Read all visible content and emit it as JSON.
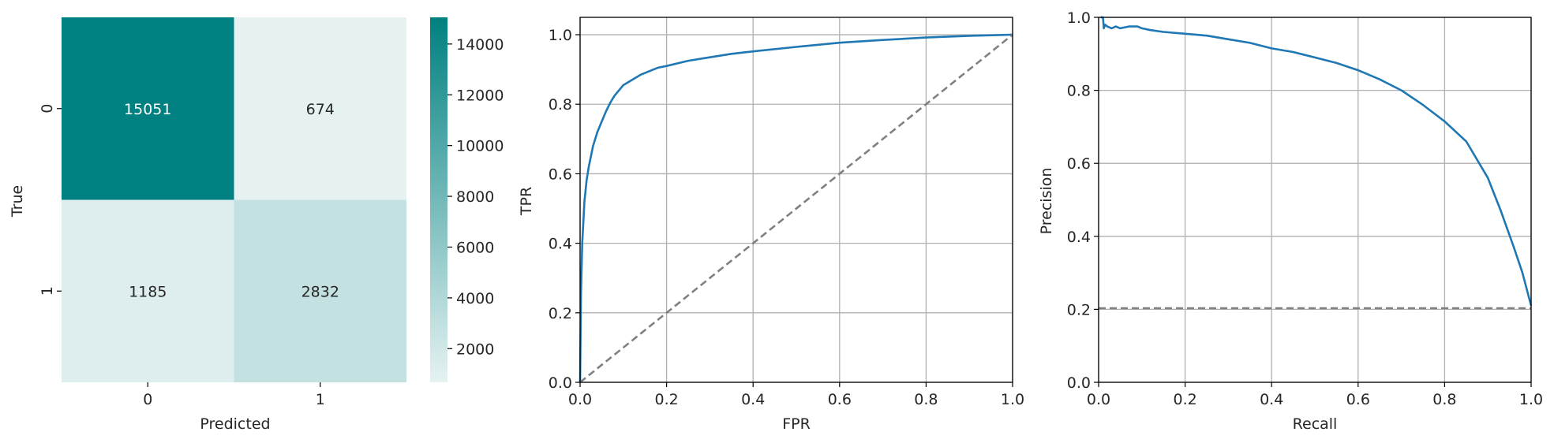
{
  "colors": {
    "heat_high": "#008080",
    "heat_low": "#e6f2f2",
    "curve": "#1f77b4",
    "baseline": "#808080",
    "grid": "#b0b0b0",
    "axis": "#000000",
    "text_dark": "#262626",
    "text_light": "#ffffff"
  },
  "chart_data": [
    {
      "type": "heatmap",
      "title": "",
      "xlabel": "Predicted",
      "ylabel": "True",
      "x_categories": [
        "0",
        "1"
      ],
      "y_categories": [
        "0",
        "1"
      ],
      "values": [
        [
          15051,
          674
        ],
        [
          1185,
          2832
        ]
      ],
      "colorbar": {
        "min": 674,
        "max": 15051,
        "ticks": [
          2000,
          4000,
          6000,
          8000,
          10000,
          12000,
          14000
        ]
      }
    },
    {
      "type": "line",
      "title": "",
      "xlabel": "FPR",
      "ylabel": "TPR",
      "xlim": [
        0,
        1
      ],
      "ylim": [
        0,
        1.05
      ],
      "xticks": [
        "0.0",
        "0.2",
        "0.4",
        "0.6",
        "0.8",
        "1.0"
      ],
      "yticks": [
        "0.0",
        "0.2",
        "0.4",
        "0.6",
        "0.8",
        "1.0"
      ],
      "grid": true,
      "series": [
        {
          "style": "solid",
          "x": [
            0.0,
            0.002,
            0.005,
            0.01,
            0.015,
            0.02,
            0.03,
            0.04,
            0.05,
            0.06,
            0.07,
            0.08,
            0.09,
            0.1,
            0.12,
            0.14,
            0.16,
            0.18,
            0.2,
            0.25,
            0.3,
            0.35,
            0.4,
            0.5,
            0.6,
            0.7,
            0.8,
            0.9,
            1.0
          ],
          "y": [
            0.0,
            0.25,
            0.4,
            0.52,
            0.58,
            0.62,
            0.68,
            0.72,
            0.75,
            0.78,
            0.805,
            0.825,
            0.84,
            0.855,
            0.87,
            0.885,
            0.895,
            0.905,
            0.91,
            0.925,
            0.935,
            0.945,
            0.952,
            0.965,
            0.977,
            0.985,
            0.992,
            0.997,
            1.0
          ]
        },
        {
          "style": "dashed",
          "x": [
            0,
            1
          ],
          "y": [
            0,
            1
          ]
        }
      ]
    },
    {
      "type": "line",
      "title": "",
      "xlabel": "Recall",
      "ylabel": "Precision",
      "xlim": [
        0,
        1
      ],
      "ylim": [
        0,
        1
      ],
      "xticks": [
        "0.0",
        "0.2",
        "0.4",
        "0.6",
        "0.8",
        "1.0"
      ],
      "yticks": [
        "0.0",
        "0.2",
        "0.4",
        "0.6",
        "0.8",
        "1.0"
      ],
      "grid": true,
      "series": [
        {
          "style": "solid",
          "x": [
            0.005,
            0.01,
            0.012,
            0.015,
            0.02,
            0.03,
            0.04,
            0.05,
            0.07,
            0.09,
            0.1,
            0.12,
            0.15,
            0.2,
            0.25,
            0.3,
            0.35,
            0.4,
            0.45,
            0.5,
            0.55,
            0.6,
            0.65,
            0.7,
            0.75,
            0.8,
            0.85,
            0.9,
            0.93,
            0.96,
            0.98,
            1.0
          ],
          "y": [
            1.0,
            1.0,
            0.97,
            0.98,
            0.975,
            0.97,
            0.975,
            0.97,
            0.975,
            0.975,
            0.97,
            0.965,
            0.96,
            0.955,
            0.95,
            0.94,
            0.93,
            0.915,
            0.905,
            0.89,
            0.875,
            0.855,
            0.83,
            0.8,
            0.76,
            0.715,
            0.66,
            0.56,
            0.47,
            0.37,
            0.3,
            0.21
          ]
        },
        {
          "style": "dashed",
          "x": [
            0,
            1
          ],
          "y": [
            0.203,
            0.203
          ]
        }
      ]
    }
  ]
}
